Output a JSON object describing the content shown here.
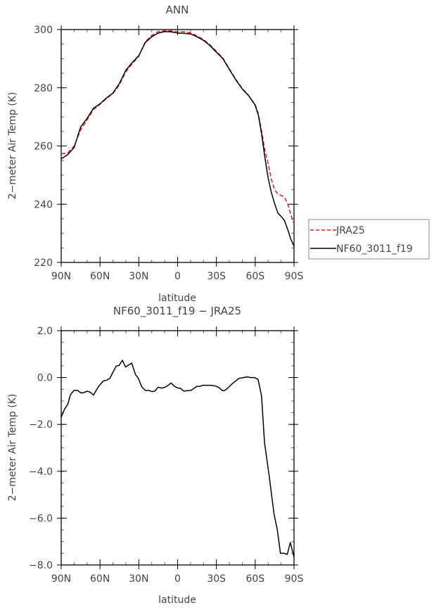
{
  "chart_data": [
    {
      "type": "line",
      "title": "ANN",
      "xlabel": "latitude",
      "ylabel": "2−meter Air Temp (K)",
      "xlim": [
        90,
        -90
      ],
      "ylim": [
        220,
        300
      ],
      "xticks": [
        90,
        60,
        30,
        0,
        -30,
        -60,
        -90
      ],
      "xtick_labels": [
        "90N",
        "60N",
        "30N",
        "0",
        "30S",
        "60S",
        "90S"
      ],
      "yticks": [
        220,
        240,
        260,
        280,
        300
      ],
      "ytick_labels": [
        "220",
        "240",
        "260",
        "280",
        "300"
      ],
      "legend": {
        "placement": "outside-right-bottom",
        "entries": [
          "JRA25",
          "NF60_3011_f19"
        ]
      },
      "x": [
        90,
        85,
        80,
        75,
        70,
        65,
        60,
        55,
        50,
        45,
        40,
        35,
        30,
        25,
        20,
        15,
        10,
        5,
        0,
        -5,
        -10,
        -15,
        -20,
        -25,
        -30,
        -35,
        -40,
        -45,
        -50,
        -55,
        -60,
        -62.5,
        -65,
        -67.5,
        -70,
        -72.5,
        -75,
        -77.5,
        -80,
        -82.5,
        -85,
        -87.5,
        -90
      ],
      "series": [
        {
          "name": "JRA25",
          "color": "#e8191c",
          "dash": true,
          "values": [
            257.3,
            257.6,
            260.0,
            265.5,
            269.0,
            272.5,
            274.3,
            276.3,
            278.0,
            281.0,
            285.5,
            288.3,
            290.8,
            295.8,
            298.0,
            299.3,
            299.6,
            299.6,
            299.2,
            299.2,
            298.9,
            297.8,
            296.6,
            294.8,
            292.5,
            290.2,
            286.5,
            282.9,
            279.8,
            277.3,
            274.2,
            271.0,
            265.0,
            258.5,
            254.0,
            248.5,
            245.0,
            243.5,
            243.0,
            242.5,
            240.3,
            236.5,
            233.2
          ]
        },
        {
          "name": "NF60_3011_f19",
          "color": "#000000",
          "dash": false,
          "values": [
            255.6,
            257.0,
            259.5,
            266.5,
            269.5,
            273.0,
            274.5,
            276.5,
            278.2,
            281.5,
            286.0,
            288.7,
            291.0,
            295.5,
            297.5,
            298.8,
            299.3,
            299.2,
            298.8,
            298.7,
            298.5,
            297.5,
            296.3,
            294.5,
            292.2,
            290.0,
            286.3,
            282.7,
            279.6,
            277.2,
            274.0,
            270.5,
            264.0,
            256.0,
            249.0,
            244.0,
            240.2,
            237.0,
            235.8,
            234.5,
            231.5,
            228.0,
            225.6
          ]
        }
      ]
    },
    {
      "type": "line",
      "title": "NF60_3011_f19 − JRA25",
      "xlabel": "latitude",
      "ylabel": "2−meter Air Temp (K)",
      "xlim": [
        90,
        -90
      ],
      "ylim": [
        -8,
        2
      ],
      "xticks": [
        90,
        60,
        30,
        0,
        -30,
        -60,
        -90
      ],
      "xtick_labels": [
        "90N",
        "60N",
        "30N",
        "0",
        "30S",
        "60S",
        "90S"
      ],
      "yticks": [
        -8,
        -6,
        -4,
        -2,
        0,
        2
      ],
      "ytick_labels": [
        "−8.0",
        "−6.0",
        "−4.0",
        "−2.0",
        "0.0",
        "2.0"
      ],
      "x": [
        90,
        87.3,
        84.9,
        82.8,
        80.1,
        77.4,
        74.6,
        71.9,
        69.8,
        67.4,
        65.1,
        61.1,
        57.5,
        54.8,
        52.4,
        47.5,
        45.2,
        42.7,
        40.3,
        35.5,
        32.5,
        30.4,
        27.7,
        24.9,
        22.2,
        19.9,
        17.7,
        15,
        12.3,
        9.6,
        7.8,
        5.1,
        2.3,
        -0.4,
        -2.2,
        -4.9,
        -7.6,
        -10.3,
        -14.8,
        -17,
        -19.3,
        -22,
        -25.7,
        -29.3,
        -32,
        -34.7,
        -36.5,
        -39.2,
        -41.9,
        -44.6,
        -47.3,
        -51,
        -53.7,
        -56.4,
        -59.6,
        -62.2,
        -64.9,
        -67.2,
        -70.8,
        -74.5,
        -77.1,
        -79.5,
        -82,
        -84.8,
        -87.1,
        -90
      ],
      "series": [
        {
          "name": "NF60_3011_f19 - JRA25",
          "color": "#000000",
          "dash": false,
          "values": [
            -1.69,
            -1.34,
            -1.14,
            -0.73,
            -0.55,
            -0.55,
            -0.66,
            -0.63,
            -0.58,
            -0.63,
            -0.75,
            -0.38,
            -0.15,
            -0.11,
            -0.03,
            0.49,
            0.52,
            0.74,
            0.45,
            0.62,
            0.12,
            -0.03,
            -0.4,
            -0.55,
            -0.55,
            -0.6,
            -0.58,
            -0.41,
            -0.45,
            -0.41,
            -0.35,
            -0.23,
            -0.38,
            -0.45,
            -0.46,
            -0.58,
            -0.56,
            -0.55,
            -0.38,
            -0.38,
            -0.33,
            -0.33,
            -0.33,
            -0.36,
            -0.43,
            -0.56,
            -0.55,
            -0.43,
            -0.28,
            -0.16,
            -0.04,
            0.0,
            0.03,
            0.0,
            0.0,
            -0.08,
            -0.78,
            -2.79,
            -4.2,
            -5.81,
            -6.51,
            -7.5,
            -7.5,
            -7.55,
            -7.04,
            -7.67
          ]
        }
      ]
    }
  ]
}
